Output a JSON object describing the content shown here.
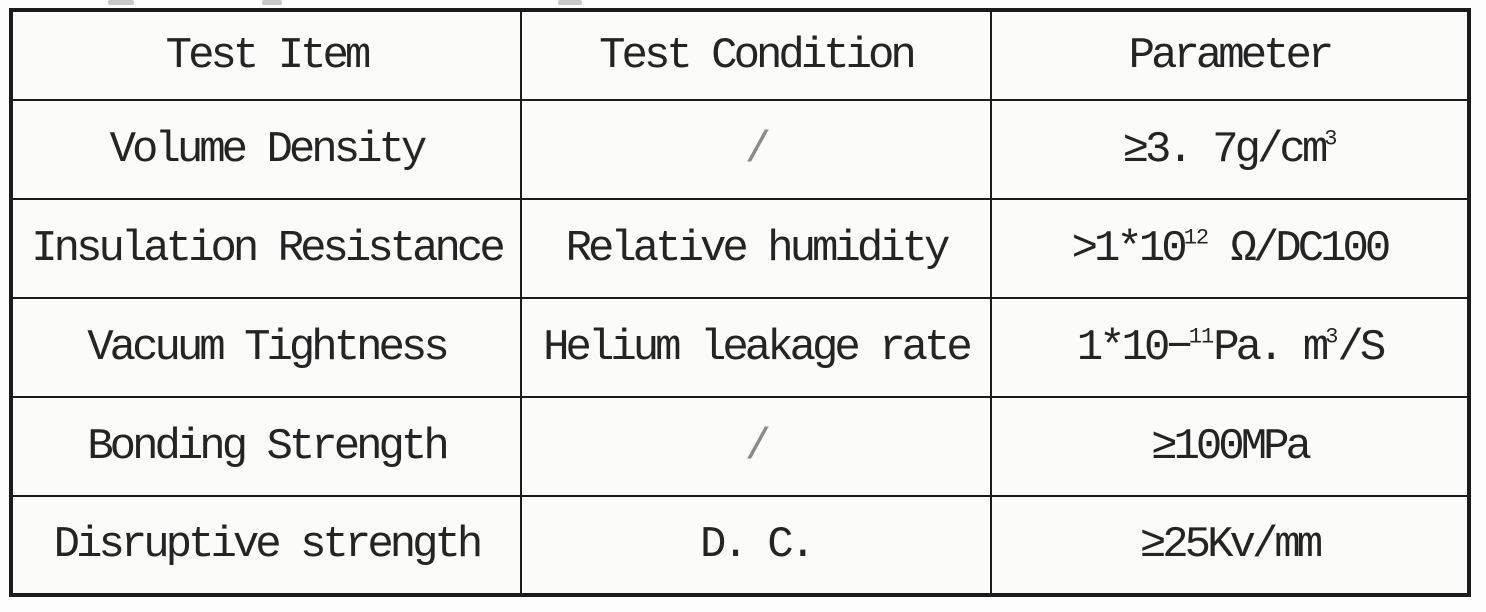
{
  "page": {
    "background": "#fdfdfd",
    "border_color": "#1b1b1b",
    "text_color": "#242424"
  },
  "table": {
    "header": [
      "Test Item",
      "Test Condition",
      "Parameter"
    ],
    "rows": [
      {
        "item": "Volume Density",
        "condition": "/",
        "condition_muted": true,
        "parameter": [
          {
            "t": "≥3. 7g/cm"
          },
          {
            "t": "3",
            "sup": true
          }
        ]
      },
      {
        "item": "Insulation Resistance",
        "condition": "Relative humidity",
        "condition_muted": false,
        "parameter": [
          {
            "t": ">1*10"
          },
          {
            "t": "12",
            "sup": true
          },
          {
            "t": " Ω/DC100"
          }
        ]
      },
      {
        "item": "Vacuum Tightness",
        "condition": "Helium leakage rate",
        "condition_muted": false,
        "parameter": [
          {
            "t": "1*10−"
          },
          {
            "t": "11",
            "sup": true
          },
          {
            "t": "Pa. m"
          },
          {
            "t": "3",
            "sup": true
          },
          {
            "t": "/S"
          }
        ]
      },
      {
        "item": "Bonding Strength",
        "condition": "/",
        "condition_muted": true,
        "parameter": [
          {
            "t": "≥100MPa"
          }
        ]
      },
      {
        "item": "Disruptive strength",
        "condition": "D. C.",
        "condition_muted": false,
        "parameter": [
          {
            "t": "≥25Kv/mm"
          }
        ]
      }
    ]
  }
}
